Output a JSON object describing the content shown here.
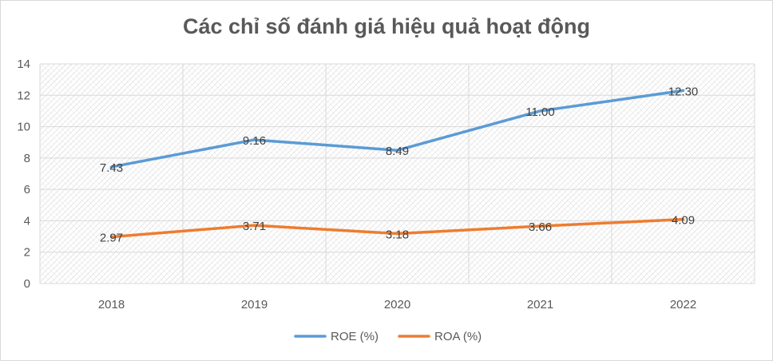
{
  "chart_data": {
    "type": "line",
    "title": "Các chỉ số đánh giá hiệu quả hoạt động",
    "categories": [
      "2018",
      "2019",
      "2020",
      "2021",
      "2022"
    ],
    "series": [
      {
        "name": "ROE (%)",
        "values": [
          7.43,
          9.16,
          8.49,
          11.0,
          12.3
        ],
        "labels": [
          "7.43",
          "9.16",
          "8.49",
          "11.00",
          "12.30"
        ],
        "color": "#5B9BD5"
      },
      {
        "name": "ROA (%)",
        "values": [
          2.97,
          3.71,
          3.18,
          3.66,
          4.09
        ],
        "labels": [
          "2.97",
          "3.71",
          "3.18",
          "3.66",
          "4.09"
        ],
        "color": "#ED7D31"
      }
    ],
    "ylim": [
      0,
      14
    ],
    "yticks": [
      "0",
      "2",
      "4",
      "6",
      "8",
      "10",
      "12",
      "14"
    ],
    "grid": true,
    "legend_position": "bottom"
  }
}
